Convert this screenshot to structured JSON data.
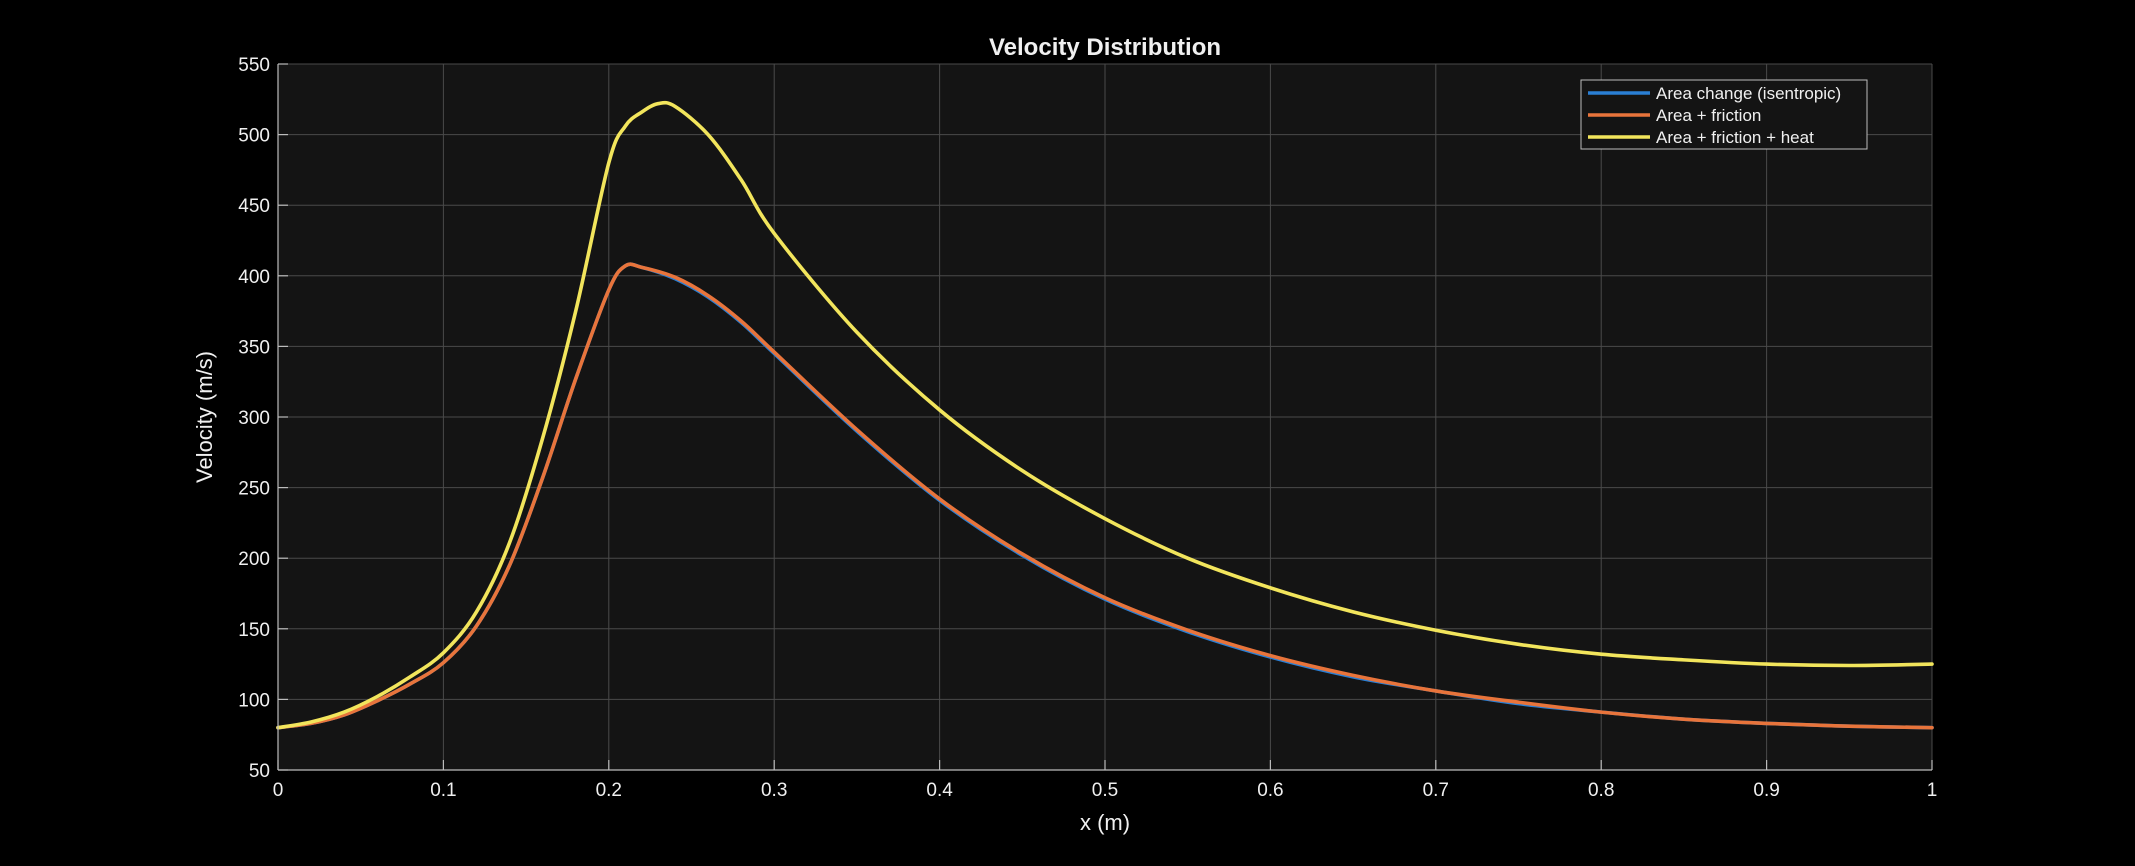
{
  "chart_data": {
    "type": "line",
    "title": "Velocity Distribution",
    "xlabel": "x (m)",
    "ylabel": "Velocity (m/s)",
    "xlim": [
      0,
      1
    ],
    "ylim": [
      50,
      550
    ],
    "xticks": [
      0,
      0.1,
      0.2,
      0.3,
      0.4,
      0.5,
      0.6,
      0.7,
      0.8,
      0.9,
      1
    ],
    "xtick_labels": [
      "0",
      "0.1",
      "0.2",
      "0.3",
      "0.4",
      "0.5",
      "0.6",
      "0.7",
      "0.8",
      "0.9",
      "1"
    ],
    "yticks": [
      50,
      100,
      150,
      200,
      250,
      300,
      350,
      400,
      450,
      500,
      550
    ],
    "ytick_labels": [
      "50",
      "100",
      "150",
      "200",
      "250",
      "300",
      "350",
      "400",
      "450",
      "500",
      "550"
    ],
    "grid": true,
    "legend_position": "top-right",
    "background_color": "#000000",
    "axes_color": "#141414",
    "series": [
      {
        "name": "Area change (isentropic)",
        "color": "#2a7fd4",
        "x": [
          0,
          0.02,
          0.04,
          0.06,
          0.08,
          0.1,
          0.12,
          0.14,
          0.16,
          0.18,
          0.2,
          0.21,
          0.22,
          0.24,
          0.26,
          0.28,
          0.3,
          0.35,
          0.4,
          0.45,
          0.5,
          0.55,
          0.6,
          0.65,
          0.7,
          0.75,
          0.8,
          0.85,
          0.9,
          0.95,
          1.0
        ],
        "y": [
          80,
          83,
          89,
          99,
          111,
          126,
          152,
          195,
          257,
          327,
          390,
          407,
          406,
          398,
          385,
          367,
          345,
          290,
          241,
          202,
          171,
          148,
          130,
          116,
          106,
          97,
          91,
          86,
          83,
          81,
          80
        ]
      },
      {
        "name": "Area + friction",
        "color": "#e8743b",
        "x": [
          0,
          0.02,
          0.04,
          0.06,
          0.08,
          0.1,
          0.12,
          0.14,
          0.16,
          0.18,
          0.2,
          0.21,
          0.22,
          0.24,
          0.26,
          0.28,
          0.3,
          0.35,
          0.4,
          0.45,
          0.5,
          0.55,
          0.6,
          0.65,
          0.7,
          0.75,
          0.8,
          0.85,
          0.9,
          0.95,
          1.0
        ],
        "y": [
          80,
          83,
          89,
          99,
          111,
          126,
          152,
          195,
          257,
          327,
          390,
          407,
          406,
          399,
          386,
          368,
          346,
          291,
          242,
          203,
          172,
          149,
          131,
          117,
          106,
          98,
          91,
          86,
          83,
          81,
          80
        ]
      },
      {
        "name": "Area + friction + heat",
        "color": "#f2e55c",
        "x": [
          0,
          0.02,
          0.04,
          0.06,
          0.08,
          0.1,
          0.12,
          0.14,
          0.16,
          0.18,
          0.2,
          0.21,
          0.22,
          0.23,
          0.24,
          0.26,
          0.28,
          0.3,
          0.35,
          0.4,
          0.45,
          0.5,
          0.55,
          0.6,
          0.65,
          0.7,
          0.75,
          0.8,
          0.85,
          0.9,
          0.95,
          1.0
        ],
        "y": [
          80,
          84,
          91,
          102,
          116,
          133,
          162,
          211,
          285,
          375,
          480,
          506,
          516,
          522,
          520,
          500,
          468,
          430,
          360,
          305,
          262,
          228,
          200,
          179,
          162,
          149,
          139,
          132,
          128,
          125,
          124,
          125
        ]
      }
    ]
  }
}
